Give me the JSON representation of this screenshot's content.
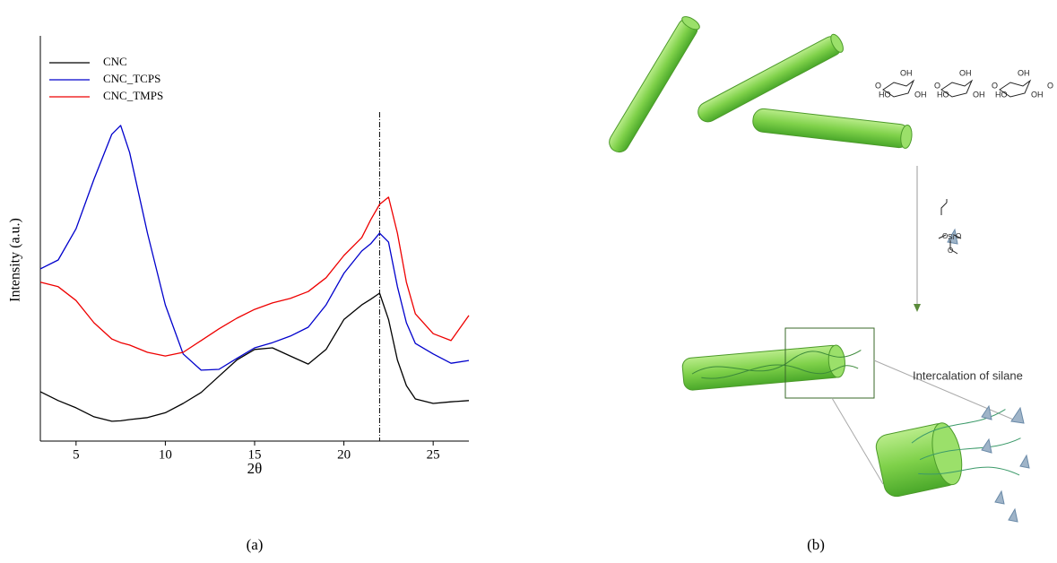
{
  "chart_data": {
    "type": "line",
    "panel_label": "(a)",
    "xlabel": "2θ",
    "ylabel": "Intensity (a.u.)",
    "x": [
      3,
      4,
      5,
      6,
      7,
      7.5,
      8,
      9,
      10,
      11,
      12,
      13,
      14,
      15,
      16,
      17,
      18,
      19,
      20,
      21,
      21.5,
      22,
      22.5,
      23,
      23.5,
      24,
      25,
      26,
      27
    ],
    "xlim": [
      3,
      27
    ],
    "xticks": [
      5,
      10,
      15,
      20,
      25
    ],
    "ylim": [
      0,
      100
    ],
    "reference_line_x": 22,
    "legend": "upper left",
    "series": [
      {
        "name": "CNC",
        "color": "#000000",
        "values": [
          12.2,
          10,
          8.2,
          6,
          4.9,
          5,
          5.3,
          5.8,
          7,
          9.3,
          12,
          16,
          20,
          22.6,
          23,
          21,
          19,
          22.6,
          30,
          33.6,
          35,
          36.5,
          30,
          20,
          13.7,
          10.4,
          9.3,
          9.7,
          10
        ]
      },
      {
        "name": "CNC_TCPS",
        "color": "#0000cc",
        "values": [
          42.5,
          44.7,
          52.4,
          64.6,
          75.7,
          77.9,
          71.2,
          51.3,
          33.6,
          21.5,
          17.5,
          17.7,
          20.4,
          23,
          24.3,
          25.9,
          28.1,
          33.6,
          41.4,
          46.9,
          48.7,
          51.3,
          49.1,
          38.1,
          29.2,
          24.1,
          21.5,
          19.2,
          19.9
        ]
      },
      {
        "name": "CNC_TMPS",
        "color": "#ee0000",
        "values": [
          39.2,
          38.1,
          34.7,
          29.2,
          25.2,
          24.3,
          23.7,
          21.9,
          21,
          21.9,
          24.8,
          27.7,
          30.3,
          32.5,
          34.1,
          35.2,
          36.9,
          40.3,
          45.8,
          50.2,
          54.6,
          58.4,
          60.2,
          51.3,
          39.2,
          31.4,
          26.5,
          24.8,
          31
        ]
      }
    ]
  },
  "diagram": {
    "panel_label": "(b)",
    "annotation": "Intercalation of silane",
    "cellulose": {
      "hydroxyl": "OH",
      "hydroxyl_left": "HO",
      "oxygen": "O"
    },
    "silane": {
      "silicon": "Si",
      "oxygen": "O"
    }
  }
}
